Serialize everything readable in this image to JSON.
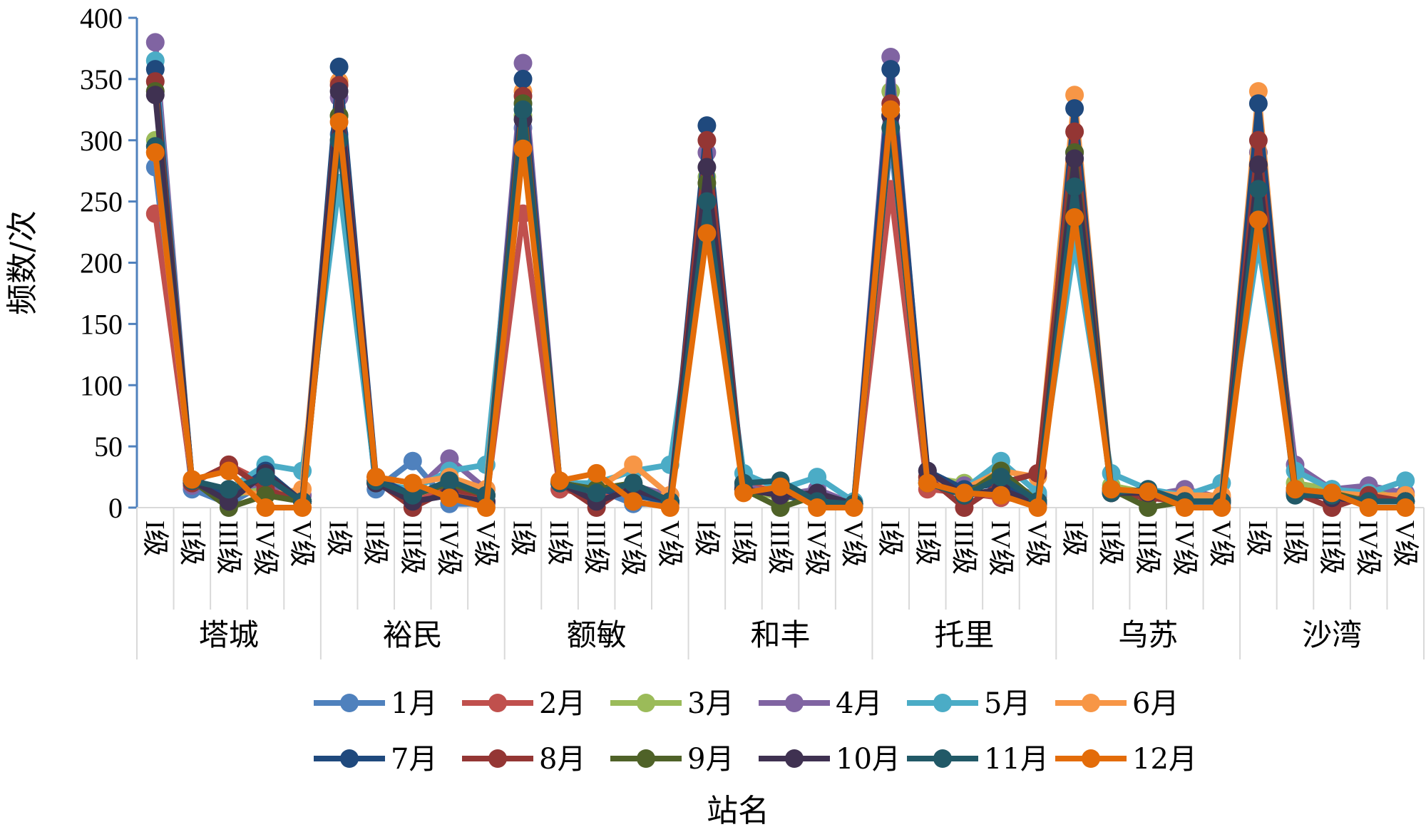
{
  "chart_data": {
    "type": "line",
    "title": "",
    "ylabel": "频数/次",
    "xlabel": "站名",
    "ylim": [
      0,
      400
    ],
    "yticks": [
      0,
      50,
      100,
      150,
      200,
      250,
      300,
      350,
      400
    ],
    "grid": false,
    "legend_position": "bottom",
    "levels": [
      "I级",
      "II级",
      "III级",
      "IV级",
      "V级"
    ],
    "groups": [
      "塔城",
      "裕民",
      "额敏",
      "和丰",
      "托里",
      "乌苏",
      "沙湾"
    ],
    "series": [
      {
        "name": "1月",
        "color": "#4f81bd",
        "values": [
          278,
          15,
          3,
          20,
          5,
          305,
          15,
          38,
          3,
          3,
          310,
          15,
          15,
          3,
          3,
          250,
          15,
          10,
          5,
          3,
          300,
          22,
          15,
          10,
          3,
          265,
          15,
          12,
          5,
          3,
          270,
          15,
          10,
          5,
          5
        ]
      },
      {
        "name": "2月",
        "color": "#c0504d",
        "values": [
          240,
          20,
          35,
          20,
          5,
          300,
          25,
          5,
          15,
          5,
          240,
          15,
          10,
          15,
          3,
          240,
          20,
          12,
          5,
          3,
          260,
          15,
          12,
          8,
          5,
          270,
          12,
          8,
          5,
          5,
          275,
          12,
          8,
          5,
          5
        ]
      },
      {
        "name": "3月",
        "color": "#9bbb59",
        "values": [
          300,
          22,
          10,
          15,
          5,
          320,
          20,
          10,
          20,
          10,
          320,
          20,
          15,
          20,
          5,
          270,
          15,
          8,
          10,
          3,
          340,
          25,
          20,
          25,
          8,
          280,
          18,
          12,
          10,
          8,
          290,
          20,
          15,
          12,
          10
        ]
      },
      {
        "name": "4月",
        "color": "#8064a2",
        "values": [
          380,
          18,
          15,
          20,
          10,
          335,
          20,
          12,
          40,
          15,
          363,
          20,
          12,
          18,
          10,
          290,
          18,
          10,
          15,
          3,
          368,
          22,
          18,
          20,
          10,
          290,
          15,
          10,
          15,
          8,
          290,
          35,
          15,
          18,
          12
        ]
      },
      {
        "name": "5月",
        "color": "#4bacc6",
        "values": [
          365,
          20,
          15,
          35,
          30,
          265,
          20,
          15,
          30,
          35,
          330,
          20,
          20,
          30,
          35,
          250,
          28,
          15,
          25,
          5,
          320,
          20,
          15,
          38,
          12,
          215,
          28,
          15,
          10,
          20,
          215,
          30,
          15,
          12,
          22
        ]
      },
      {
        "name": "6月",
        "color": "#f79646",
        "values": [
          290,
          20,
          15,
          10,
          15,
          348,
          25,
          20,
          25,
          15,
          340,
          20,
          15,
          35,
          10,
          225,
          15,
          10,
          10,
          3,
          310,
          20,
          15,
          30,
          25,
          337,
          15,
          12,
          10,
          10,
          340,
          15,
          12,
          10,
          10
        ]
      },
      {
        "name": "7月",
        "color": "#1f497d",
        "values": [
          358,
          20,
          10,
          30,
          5,
          360,
          25,
          10,
          20,
          10,
          350,
          20,
          15,
          10,
          5,
          312,
          15,
          10,
          5,
          3,
          358,
          30,
          15,
          20,
          5,
          326,
          15,
          10,
          5,
          5,
          330,
          15,
          10,
          5,
          5
        ]
      },
      {
        "name": "8月",
        "color": "#943634",
        "values": [
          348,
          20,
          35,
          15,
          5,
          345,
          22,
          0,
          15,
          10,
          336,
          20,
          0,
          20,
          5,
          300,
          15,
          10,
          10,
          3,
          330,
          25,
          0,
          20,
          28,
          307,
          12,
          8,
          5,
          5,
          300,
          12,
          0,
          10,
          5
        ]
      },
      {
        "name": "9月",
        "color": "#4f6228",
        "values": [
          340,
          22,
          0,
          10,
          5,
          320,
          20,
          10,
          20,
          10,
          330,
          20,
          15,
          20,
          5,
          265,
          15,
          0,
          10,
          3,
          320,
          20,
          10,
          30,
          5,
          290,
          15,
          0,
          5,
          5,
          280,
          15,
          12,
          5,
          5
        ]
      },
      {
        "name": "10月",
        "color": "#3f3151",
        "values": [
          337,
          22,
          5,
          28,
          5,
          340,
          20,
          5,
          10,
          5,
          317,
          20,
          5,
          15,
          5,
          278,
          15,
          10,
          12,
          3,
          320,
          30,
          10,
          15,
          3,
          285,
          12,
          12,
          5,
          5,
          280,
          12,
          8,
          5,
          5
        ]
      },
      {
        "name": "11月",
        "color": "#215967",
        "values": [
          295,
          22,
          15,
          25,
          5,
          300,
          22,
          10,
          22,
          10,
          325,
          20,
          12,
          20,
          5,
          250,
          20,
          22,
          5,
          3,
          310,
          20,
          10,
          25,
          5,
          262,
          12,
          15,
          5,
          5,
          260,
          10,
          10,
          5,
          5
        ]
      },
      {
        "name": "12月",
        "color": "#e36c09",
        "values": [
          290,
          23,
          30,
          0,
          0,
          315,
          25,
          20,
          8,
          0,
          293,
          22,
          28,
          5,
          0,
          224,
          12,
          17,
          0,
          0,
          325,
          20,
          12,
          10,
          0,
          237,
          15,
          13,
          0,
          0,
          235,
          15,
          12,
          0,
          0
        ]
      }
    ]
  }
}
